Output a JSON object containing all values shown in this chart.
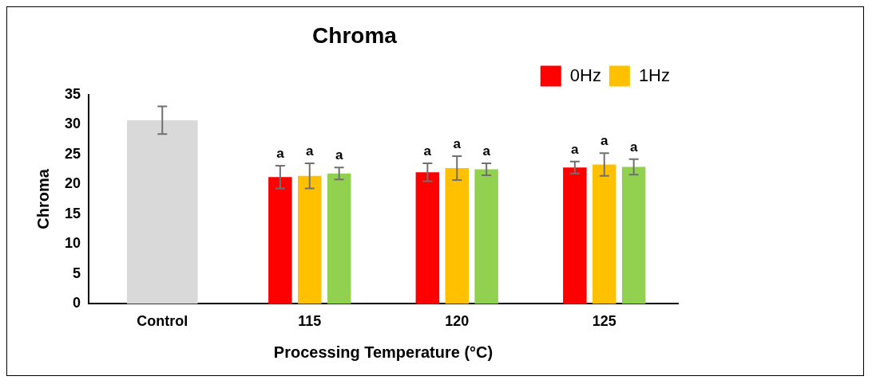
{
  "chart_data": {
    "type": "bar",
    "title": "Chroma",
    "xlabel": "Processing Temperature (°C)",
    "ylabel": "Chroma",
    "categories": [
      "Control",
      "115",
      "120",
      "125"
    ],
    "series": [
      {
        "color": "#d9d9d9",
        "values": [
          30.7,
          null,
          null,
          null
        ],
        "errors": [
          2.3,
          null,
          null,
          null
        ]
      },
      {
        "name": "0Hz",
        "color": "#ff0000",
        "values": [
          null,
          21.2,
          22.0,
          22.8
        ],
        "errors": [
          null,
          1.9,
          1.5,
          1.0
        ],
        "value_labels": [
          null,
          "a",
          "a",
          "a"
        ]
      },
      {
        "name": "1Hz",
        "color": "#ffc000",
        "values": [
          null,
          21.4,
          22.7,
          23.3
        ],
        "errors": [
          null,
          2.1,
          2.0,
          1.9
        ],
        "value_labels": [
          null,
          "a",
          "a",
          "a"
        ]
      },
      {
        "color": "#92d050",
        "values": [
          null,
          21.8,
          22.5,
          22.9
        ],
        "errors": [
          null,
          1.0,
          1.0,
          1.3
        ],
        "value_labels": [
          null,
          "a",
          "a",
          "a"
        ]
      }
    ],
    "ylim": [
      0,
      35
    ],
    "yticks": [
      0,
      5,
      10,
      15,
      20,
      25,
      30,
      35
    ],
    "grid": false,
    "legend": "top right"
  }
}
